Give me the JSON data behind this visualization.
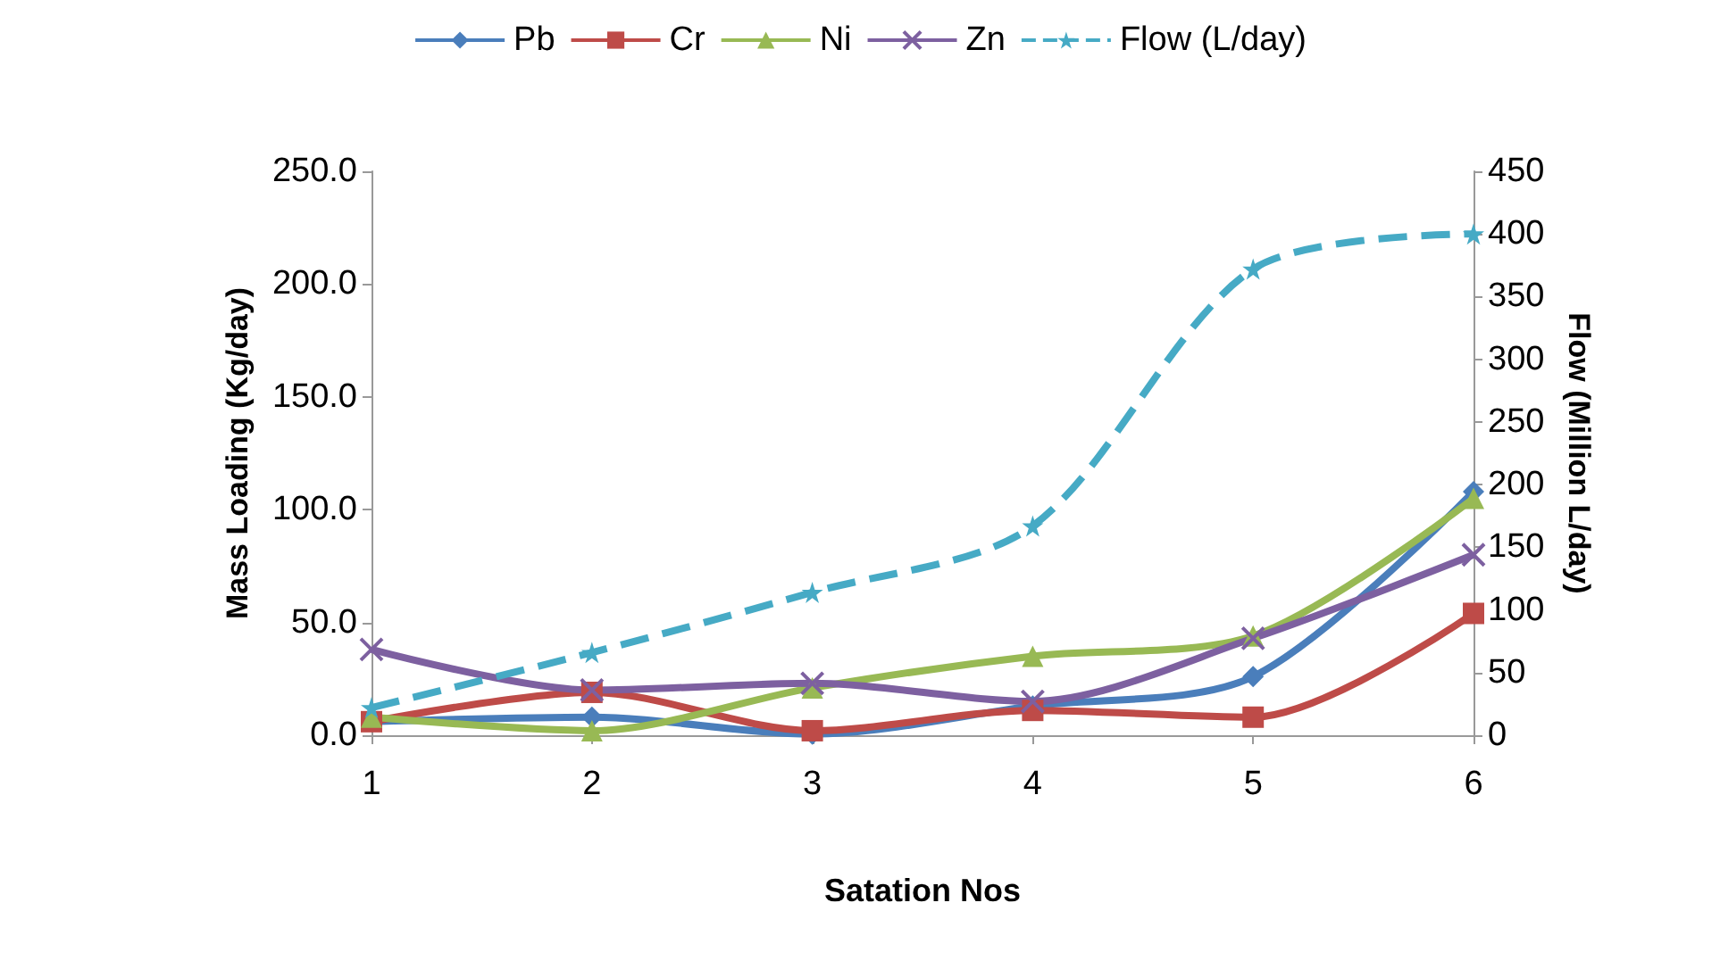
{
  "chart_data": {
    "type": "line",
    "xlabel": "Satation Nos",
    "ylabel": "Mass Loading (Kg/day)",
    "y2label": "Flow (Million L/day)",
    "categories": [
      "1",
      "2",
      "3",
      "4",
      "5",
      "6"
    ],
    "ylim": [
      0,
      250
    ],
    "yticks": [
      {
        "value": 0,
        "label": "0.0"
      },
      {
        "value": 50,
        "label": "50.0"
      },
      {
        "value": 100,
        "label": "100.0"
      },
      {
        "value": 150,
        "label": "150.0"
      },
      {
        "value": 200,
        "label": "200.0"
      },
      {
        "value": 250,
        "label": "250.0"
      }
    ],
    "y2lim": [
      0,
      450
    ],
    "y2ticks": [
      0,
      50,
      100,
      150,
      200,
      250,
      300,
      350,
      400,
      450
    ],
    "grid": false,
    "legend": "top",
    "series": [
      {
        "name": "Pb",
        "color": "#4a7ebb",
        "marker": "diamond",
        "values": [
          6,
          8,
          0.5,
          13,
          26,
          108
        ]
      },
      {
        "name": "Cr",
        "color": "#be4b48",
        "marker": "square",
        "values": [
          6,
          19,
          2,
          11,
          8,
          54
        ]
      },
      {
        "name": "Ni",
        "color": "#98b954",
        "marker": "triangle",
        "values": [
          8,
          2,
          21,
          35,
          44,
          105
        ]
      },
      {
        "name": "Zn",
        "color": "#7d60a0",
        "marker": "cross",
        "values": [
          38,
          20,
          23,
          15,
          43,
          80
        ]
      },
      {
        "name": "Flow (L/day)",
        "color": "#46aac5",
        "marker": "star",
        "line_style": "dashed",
        "axis": "y2",
        "values": [
          22,
          66,
          114,
          167,
          372,
          400
        ]
      }
    ]
  }
}
